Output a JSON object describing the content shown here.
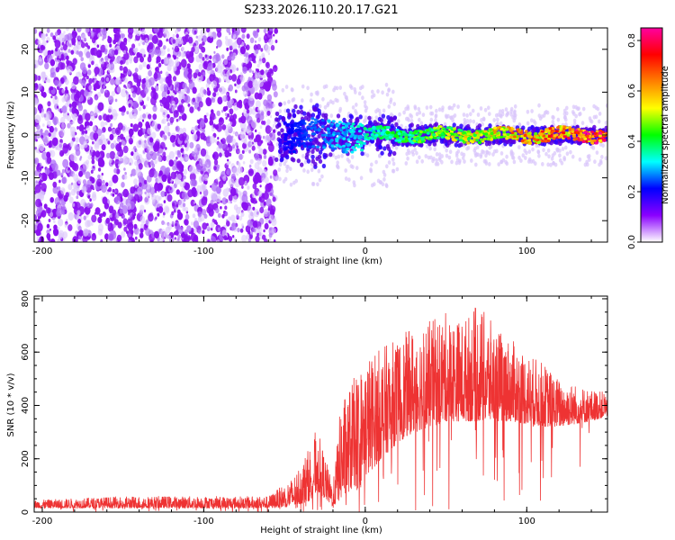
{
  "title": "S233.2026.110.20.17.G21",
  "chart_data": [
    {
      "type": "heatmap",
      "xlabel": "Height of straight line (km)",
      "ylabel": "Frequency (Hz)",
      "xlim": [
        -205,
        150
      ],
      "ylim": [
        -25,
        25
      ],
      "x_ticks": [
        -200,
        -100,
        0,
        100
      ],
      "x_tick_labels": [
        "-200",
        "-100",
        "0",
        "100"
      ],
      "y_ticks": [
        -20,
        -10,
        0,
        10,
        20
      ],
      "y_tick_labels": [
        "-20",
        "-10",
        "0",
        "10",
        "20"
      ],
      "colorbar": {
        "label": "Normalized spectral amplitude",
        "range": [
          0.0,
          0.85
        ],
        "ticks": [
          0.0,
          0.2,
          0.4,
          0.6,
          0.8
        ],
        "tick_labels": [
          "0.0",
          "0.2",
          "0.4",
          "0.6",
          "0.8"
        ],
        "colors": [
          "#ffffff",
          "#8a00ff",
          "#0000ff",
          "#00ffff",
          "#00ff00",
          "#ffff00",
          "#ff8000",
          "#ff0000",
          "#ff00a0"
        ]
      },
      "regions": [
        {
          "x_range": [
            -205,
            -55
          ],
          "f_range": [
            -25,
            25
          ],
          "amplitude": 0.05
        },
        {
          "x_range": [
            -55,
            20
          ],
          "f_range": [
            -8,
            8
          ],
          "amplitude": 0.25
        },
        {
          "x_range": [
            20,
            150
          ],
          "f_range": [
            -3,
            3
          ],
          "amplitude": 0.6
        }
      ],
      "signal_band_center_hz": 0,
      "grid": false
    },
    {
      "type": "line",
      "xlabel": "Height of straight line (km)",
      "ylabel": "SNR (10 * v/v)",
      "xlim": [
        -205,
        150
      ],
      "ylim": [
        0,
        810
      ],
      "x_ticks": [
        -200,
        -100,
        0,
        100
      ],
      "x_tick_labels": [
        "-200",
        "-100",
        "0",
        "100"
      ],
      "y_ticks": [
        0,
        200,
        400,
        600,
        800
      ],
      "y_tick_labels": [
        "0",
        "200",
        "400",
        "600",
        "800"
      ],
      "color": "#ee3333",
      "envelope": {
        "x": [
          -205,
          -150,
          -100,
          -60,
          -45,
          -35,
          -30,
          -20,
          -15,
          0,
          10,
          20,
          30,
          40,
          50,
          60,
          70,
          80,
          90,
          100,
          110,
          120,
          130,
          140,
          150
        ],
        "y_low": [
          15,
          15,
          15,
          15,
          20,
          40,
          80,
          20,
          50,
          130,
          200,
          260,
          300,
          320,
          340,
          340,
          340,
          340,
          340,
          330,
          320,
          320,
          330,
          340,
          360
        ],
        "y_high": [
          45,
          60,
          60,
          60,
          130,
          240,
          320,
          100,
          420,
          580,
          620,
          650,
          700,
          720,
          750,
          720,
          780,
          700,
          650,
          600,
          560,
          500,
          480,
          460,
          450
        ]
      },
      "grid": false
    }
  ]
}
